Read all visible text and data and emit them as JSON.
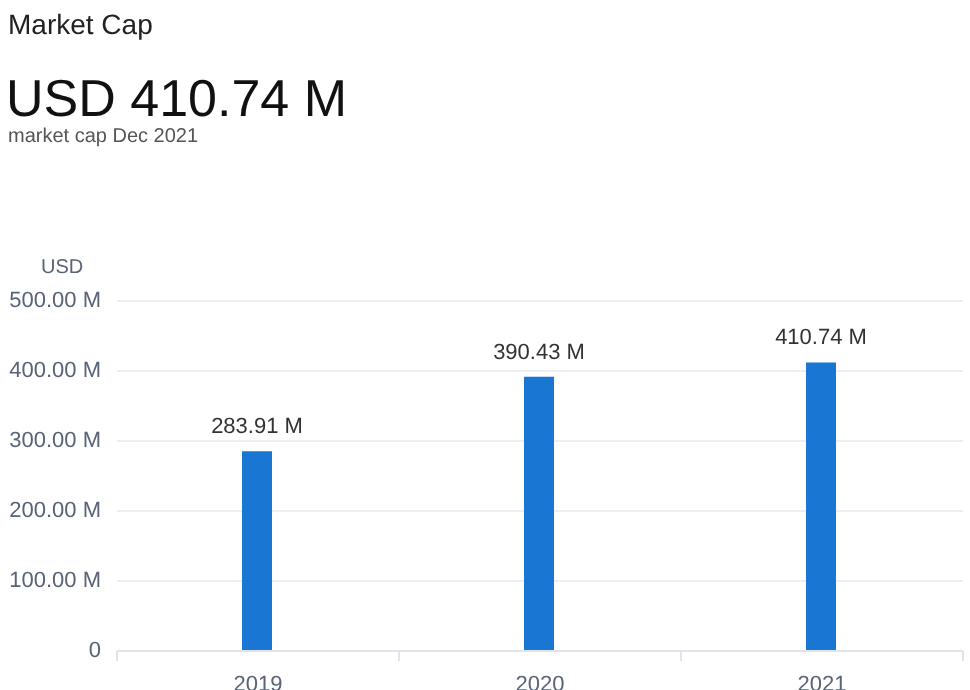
{
  "chart_data": {
    "type": "bar",
    "title": "Market Cap",
    "subtitle": "USD 410.74 M",
    "annotations": [
      "market cap Dec 2021"
    ],
    "ylabel": "USD",
    "categories": [
      "2019",
      "2020",
      "2021"
    ],
    "values": [
      283.91,
      390.43,
      410.74
    ],
    "value_labels": [
      "283.91 M",
      "390.43 M",
      "410.74 M"
    ],
    "color": "#1976d2",
    "ylim": [
      0,
      500
    ],
    "yticks": [
      0,
      {
        "value": 100,
        "label": "100.00 M"
      },
      {
        "value": 200,
        "label": "200.00 M"
      },
      {
        "value": 300,
        "label": "300.00 M"
      },
      {
        "value": 400,
        "label": "400.00 M"
      },
      {
        "value": 500,
        "label": "500.00 M"
      }
    ],
    "grid": "y"
  }
}
